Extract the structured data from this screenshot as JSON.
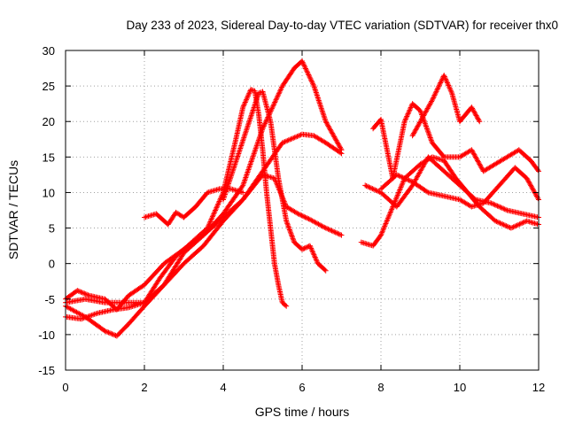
{
  "chart_data": {
    "type": "scatter",
    "title": "Day 233 of 2023, Sidereal Day-to-day VTEC variation (SDTVAR) for receiver thx0",
    "xlabel": "GPS time / hours",
    "ylabel": "SDTVAR / TECUs",
    "xlim": [
      0,
      12
    ],
    "ylim": [
      -15,
      30
    ],
    "xticks": [
      0,
      2,
      4,
      6,
      8,
      10,
      12
    ],
    "yticks": [
      -15,
      -10,
      -5,
      0,
      5,
      10,
      15,
      20,
      25,
      30
    ],
    "grid": true,
    "marker": "+",
    "color": "#ff0000",
    "series": [
      {
        "x": [
          0,
          0.4,
          0.8,
          1.2,
          1.6,
          2.0,
          2.4,
          2.8,
          3.2,
          3.6,
          4.0,
          4.3,
          4.5,
          4.7,
          4.8,
          4.9,
          5.0,
          5.1,
          5.2,
          5.3,
          5.4,
          5.5,
          5.6
        ],
        "y": [
          -7.5,
          -7.8,
          -7,
          -6.5,
          -6.2,
          -5.5,
          -2,
          1,
          3,
          5,
          10,
          17,
          22,
          24.5,
          24.3,
          21,
          16,
          10,
          5,
          0,
          -3,
          -5.5,
          -6
        ]
      },
      {
        "x": [
          4.0,
          4.3,
          4.6,
          4.9,
          5.0,
          5.2,
          5.4,
          5.6,
          5.8,
          6.0,
          6.2,
          6.4,
          6.5,
          6.6
        ],
        "y": [
          9,
          14,
          19,
          24,
          24.2,
          20,
          12,
          6,
          3,
          2,
          2.5,
          0,
          -0.5,
          -1
        ]
      },
      {
        "x": [
          0,
          0.3,
          0.6,
          1.0,
          1.3,
          1.6,
          2.0,
          2.5,
          3.0,
          3.5,
          4.0,
          4.5,
          5.0,
          5.5,
          5.8,
          6.0,
          6.3,
          6.6,
          6.9,
          7.0
        ],
        "y": [
          -5,
          -3.8,
          -4.5,
          -5,
          -6.5,
          -4.5,
          -3,
          0,
          2,
          4,
          7,
          11,
          19,
          25,
          27.5,
          28.5,
          25,
          20,
          17,
          16
        ]
      },
      {
        "x": [
          0,
          0.5,
          1.0,
          1.3,
          1.6,
          2.0,
          2.5,
          3.0,
          3.5,
          4.0,
          4.5,
          5.0,
          5.5,
          6.0,
          6.3,
          6.6,
          7.0
        ],
        "y": [
          -6,
          -7.5,
          -9.5,
          -10.2,
          -8.5,
          -6,
          -3,
          0,
          2.5,
          6,
          9,
          13,
          17,
          18.2,
          18,
          17,
          15.5
        ]
      },
      {
        "x": [
          0,
          0.5,
          1.0,
          1.5,
          2.0,
          2.5,
          3.0,
          3.5,
          4.0,
          4.5,
          5.0,
          5.3,
          5.6,
          5.9,
          6.2,
          6.6,
          7.0
        ],
        "y": [
          -5.5,
          -5,
          -5.5,
          -5.5,
          -5.5,
          -3,
          1.5,
          4,
          6.5,
          9,
          12.5,
          12,
          8,
          7,
          6.2,
          5,
          4
        ]
      },
      {
        "x": [
          2.0,
          2.3,
          2.6,
          2.8,
          3.0,
          3.3,
          3.6,
          3.9,
          4.2,
          4.5
        ],
        "y": [
          6.5,
          7,
          5.5,
          7.2,
          6.5,
          8,
          10,
          10.5,
          10.5,
          10
        ]
      },
      {
        "x": [
          7.5,
          7.8,
          8.0,
          8.3,
          8.6,
          9.0,
          9.3,
          9.6,
          9.9,
          10.2,
          10.5,
          10.9,
          11.3,
          11.7,
          12.0
        ],
        "y": [
          3,
          2.5,
          4,
          8,
          12,
          14,
          15,
          14.5,
          12,
          10,
          8,
          6,
          5,
          6,
          5.5
        ]
      },
      {
        "x": [
          7.8,
          8.0,
          8.3,
          8.6,
          8.8,
          9.0,
          9.3,
          9.6,
          10.0,
          10.3,
          10.6,
          10.9,
          11.2,
          11.5,
          11.8,
          12.0
        ],
        "y": [
          19,
          20.3,
          12,
          20,
          22.5,
          21.5,
          17,
          15,
          15,
          16,
          13,
          14,
          15,
          16,
          14.5,
          13
        ]
      },
      {
        "x": [
          8.0,
          8.4,
          8.8,
          9.2,
          9.6,
          10.0,
          10.3,
          10.6,
          11.0,
          11.4,
          11.7,
          12.0
        ],
        "y": [
          10.5,
          12.5,
          11.5,
          10,
          9.5,
          9,
          8,
          8.5,
          11,
          13.5,
          12,
          9
        ]
      },
      {
        "x": [
          7.6,
          8.0,
          8.4,
          8.8,
          9.2,
          9.6,
          10.0,
          10.4,
          10.8,
          11.2,
          11.6,
          12.0
        ],
        "y": [
          11,
          10,
          8,
          11,
          15,
          13,
          11,
          9,
          8.5,
          7.5,
          7,
          6.5
        ]
      },
      {
        "x": [
          8.8,
          9.0,
          9.3,
          9.6,
          9.8,
          10.0,
          10.3,
          10.5
        ],
        "y": [
          18,
          20,
          23,
          26.5,
          24,
          20,
          22,
          20
        ]
      }
    ]
  }
}
